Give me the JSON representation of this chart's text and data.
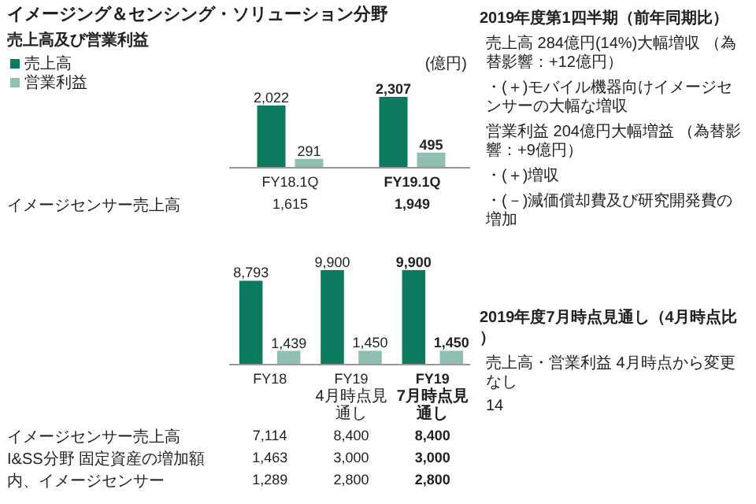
{
  "chart_data": [
    {
      "type": "bar",
      "title": "イメージング＆センシング・ソリューション分野",
      "subtitle": "売上高及び営業利益",
      "ylabel": "(億円)",
      "categories": [
        "FY18.1Q",
        "FY19.1Q"
      ],
      "series": [
        {
          "name": "売上高",
          "color": "#0b7a5e",
          "values": [
            2022,
            2307
          ],
          "value_labels": [
            "2,022",
            "2,307"
          ]
        },
        {
          "name": "営業利益",
          "color": "#8fbfb3",
          "values": [
            291,
            495
          ],
          "value_labels": [
            "291",
            "495"
          ]
        }
      ],
      "legend": "top left",
      "annotations": [
        "イメージセンサー売上高",
        "1,615",
        "1,949"
      ]
    },
    {
      "type": "bar",
      "categories": [
        "FY18",
        "FY19\n4月時点見通し",
        "FY19\n7月時点見通し"
      ],
      "series": [
        {
          "color": "#0b7a5e",
          "values": [
            8793,
            9900,
            9900
          ],
          "value_labels": [
            "8,793",
            "9,900",
            "9,900"
          ]
        },
        {
          "color": "#8fbfb3",
          "values": [
            1439,
            1450,
            1450
          ],
          "value_labels": [
            "1,439",
            "1,450",
            "1,450"
          ]
        }
      ],
      "annotations": [
        "イメージセンサー売上高",
        "7,114",
        "8,400",
        "8,400",
        "I&SS分野 固定資産の増加額",
        "1,463",
        "3,000",
        "3,000",
        "内、イメージセンサー",
        "1,289",
        "2,800",
        "2,800"
      ]
    },
    {
      "type": "other",
      "title": "2019年度第1四半期（前年同期比）",
      "annotations": [
        "売上高 284億円(14%)大幅増収 （為替影響：+12億円）",
        "・(＋)モバイル機器向けイメージセンサーの大幅な増収",
        "営業利益 204億円大幅増益 （為替影響：+9億円）",
        "・(＋)増収",
        "・(－)減価償却費及び研究開発費の増加"
      ]
    },
    {
      "type": "other",
      "title": "2019年度7月時点見通し（4月時点比）",
      "annotations": [
        "売上高・営業利益 4月時点から変更なし",
        "14"
      ]
    }
  ]
}
